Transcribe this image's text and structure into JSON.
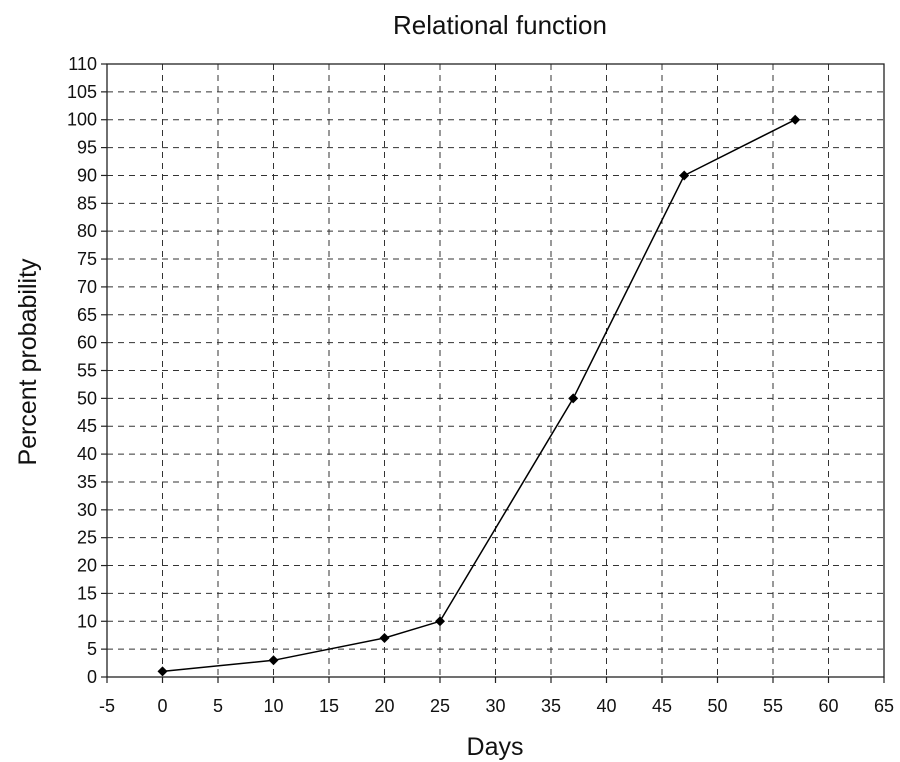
{
  "chart_data": {
    "type": "line",
    "title": "Relational function",
    "xlabel": "Days",
    "ylabel": "Percent probability",
    "xlim": [
      -5,
      65
    ],
    "ylim": [
      0,
      110
    ],
    "x_ticks": [
      -5,
      0,
      5,
      10,
      15,
      20,
      25,
      30,
      35,
      40,
      45,
      50,
      55,
      60,
      65
    ],
    "y_ticks": [
      0,
      5,
      10,
      15,
      20,
      25,
      30,
      35,
      40,
      45,
      50,
      55,
      60,
      65,
      70,
      75,
      80,
      85,
      90,
      95,
      100,
      105,
      110
    ],
    "grid": true,
    "legend": "none",
    "series": [
      {
        "x": [
          0,
          10,
          20,
          25,
          37,
          47,
          57
        ],
        "y": [
          1,
          3,
          7,
          10,
          50,
          90,
          100
        ],
        "marker": "diamond",
        "color": "#000000"
      }
    ]
  }
}
